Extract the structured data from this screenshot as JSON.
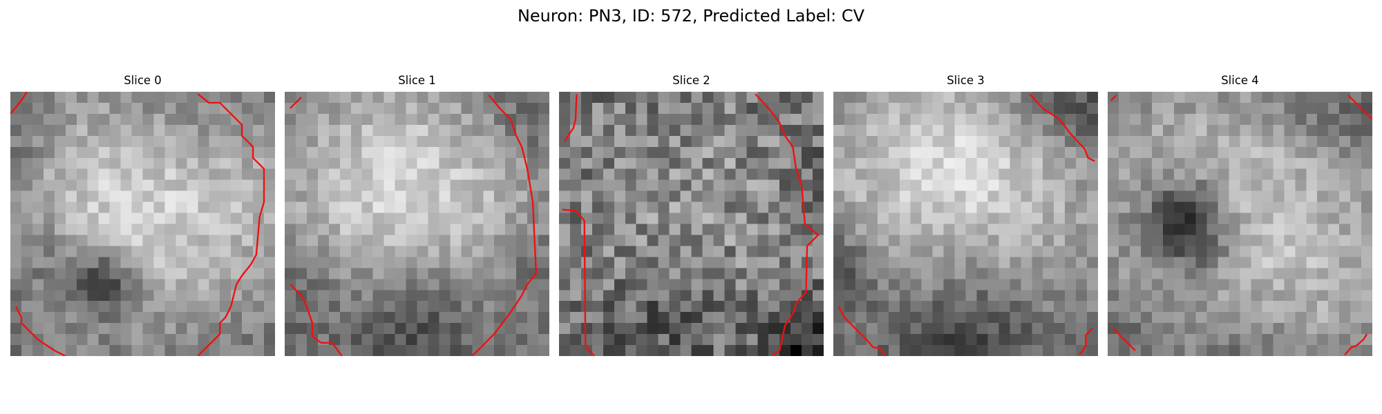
{
  "title": "Neuron: PN3, ID: 572, Predicted Label: CV",
  "slices": [
    {
      "title": "Slice 0",
      "seed": 11,
      "bright": [
        {
          "x": 13.0,
          "y": 8.5,
          "r": 10.0,
          "a": 0.92
        },
        {
          "x": 6.5,
          "y": 12.0,
          "r": 6.5,
          "a": 0.25
        },
        {
          "x": 21.0,
          "y": 11.5,
          "r": 5.2,
          "a": 0.18
        }
      ],
      "dark": [
        {
          "x": 8.6,
          "y": 17.3,
          "r": 2.0,
          "a": 0.65
        },
        {
          "x": 4.0,
          "y": 15.0,
          "r": 3.0,
          "a": 0.25
        },
        {
          "x": 15.0,
          "y": 1.0,
          "r": 5.0,
          "a": 0.25
        },
        {
          "x": 0.5,
          "y": 5.0,
          "r": 3.0,
          "a": 0.18
        }
      ],
      "contours": [
        [
          [
            0,
            2
          ],
          [
            1,
            0.8
          ],
          [
            1.5,
            0
          ]
        ],
        [
          [
            17,
            0.2
          ],
          [
            18,
            1
          ],
          [
            19,
            1
          ],
          [
            21,
            3
          ],
          [
            21,
            4
          ],
          [
            22,
            5
          ],
          [
            22,
            6
          ],
          [
            23,
            7
          ],
          [
            23,
            10
          ],
          [
            22.6,
            11.4
          ],
          [
            22.3,
            14.8
          ],
          [
            21.8,
            15.7
          ],
          [
            21.0,
            16.7
          ],
          [
            20.5,
            17.5
          ],
          [
            20.0,
            19.5
          ],
          [
            19.5,
            20.5
          ],
          [
            19,
            21
          ],
          [
            19,
            22
          ],
          [
            17,
            24
          ]
        ],
        [
          [
            0.5,
            19.5
          ],
          [
            1,
            20.5
          ],
          [
            1,
            21
          ],
          [
            2,
            22
          ],
          [
            2.5,
            22.5
          ],
          [
            4,
            23.5
          ],
          [
            5,
            24
          ]
        ]
      ]
    },
    {
      "title": "Slice 1",
      "seed": 23,
      "bright": [
        {
          "x": 12.0,
          "y": 10.0,
          "r": 10.3,
          "a": 0.95
        },
        {
          "x": 7.0,
          "y": 8.0,
          "r": 5.0,
          "a": 0.2
        },
        {
          "x": 18.0,
          "y": 14.0,
          "r": 6.0,
          "a": 0.1
        }
      ],
      "dark": [
        {
          "x": 12.0,
          "y": 21.0,
          "r": 5.0,
          "a": 0.48
        },
        {
          "x": 23.0,
          "y": 16.0,
          "r": 3.0,
          "a": 0.25
        },
        {
          "x": 0.5,
          "y": 18.0,
          "r": 3.0,
          "a": 0.18
        },
        {
          "x": 22.0,
          "y": 2.0,
          "r": 3.5,
          "a": 0.25
        }
      ],
      "contours": [
        [
          [
            0.5,
            1.5
          ],
          [
            1.5,
            0.5
          ]
        ],
        [
          [
            18.5,
            0.3
          ],
          [
            19.5,
            1.5
          ],
          [
            20.5,
            2.5
          ],
          [
            21,
            4
          ],
          [
            21.5,
            5
          ],
          [
            22,
            7
          ],
          [
            22.5,
            10
          ],
          [
            22.8,
            16.5
          ],
          [
            22,
            17.5
          ],
          [
            21.5,
            18.5
          ],
          [
            20.5,
            20
          ],
          [
            19,
            22
          ],
          [
            17,
            24
          ]
        ],
        [
          [
            0.5,
            17.5
          ],
          [
            1.5,
            18.5
          ],
          [
            2,
            19.5
          ],
          [
            2.5,
            21
          ],
          [
            2.5,
            22.2
          ],
          [
            3.3,
            22.8
          ],
          [
            4.3,
            22.8
          ],
          [
            5.2,
            24
          ]
        ]
      ]
    },
    {
      "title": "Slice 2",
      "seed": 37,
      "noise": 0.2,
      "bright": [
        {
          "x": 12.0,
          "y": 11.0,
          "r": 11.0,
          "a": 0.45
        }
      ],
      "dark": [
        {
          "x": 22.0,
          "y": 23.0,
          "r": 2.5,
          "a": 0.55
        },
        {
          "x": 10.0,
          "y": 20.5,
          "r": 4.0,
          "a": 0.25
        },
        {
          "x": 24.0,
          "y": 8.0,
          "r": 2.0,
          "a": 0.18
        }
      ],
      "contours": [
        [
          [
            0.5,
            4.5
          ],
          [
            1.3,
            3.3
          ],
          [
            1.5,
            2.5
          ],
          [
            1.6,
            0.2
          ]
        ],
        [
          [
            0.3,
            10.7
          ],
          [
            1.5,
            10.8
          ],
          [
            2.3,
            11.7
          ],
          [
            2.4,
            23.1
          ],
          [
            3.2,
            24
          ]
        ],
        [
          [
            17.8,
            0.2
          ],
          [
            19,
            1.5
          ],
          [
            20,
            2.8
          ],
          [
            20.5,
            4
          ],
          [
            21.2,
            5
          ],
          [
            21.5,
            7
          ],
          [
            22,
            8.5
          ],
          [
            22.3,
            12
          ],
          [
            23.5,
            13
          ],
          [
            22.5,
            14
          ],
          [
            22.4,
            18.2
          ],
          [
            21.5,
            19.2
          ],
          [
            21.3,
            20
          ],
          [
            20.5,
            21.2
          ],
          [
            20,
            23.5
          ],
          [
            19.3,
            24
          ]
        ]
      ]
    },
    {
      "title": "Slice 3",
      "seed": 53,
      "bright": [
        {
          "x": 12.0,
          "y": 10.0,
          "r": 11.0,
          "a": 0.95
        },
        {
          "x": 6.0,
          "y": 5.0,
          "r": 5.0,
          "a": 0.2
        },
        {
          "x": 14.0,
          "y": 5.0,
          "r": 4.5,
          "a": 0.15
        }
      ],
      "dark": [
        {
          "x": 12.0,
          "y": 22.5,
          "r": 5.5,
          "a": 0.55
        },
        {
          "x": 0.2,
          "y": 16.5,
          "r": 2.5,
          "a": 0.55
        },
        {
          "x": 20.0,
          "y": 0.8,
          "r": 3.0,
          "a": 0.35
        },
        {
          "x": 23.8,
          "y": 2.5,
          "r": 2.0,
          "a": 0.25
        }
      ],
      "contours": [
        [
          [
            17.8,
            0.2
          ],
          [
            19,
            1.5
          ],
          [
            20.5,
            2.5
          ],
          [
            21.5,
            3.8
          ],
          [
            22.8,
            5.2
          ],
          [
            23.1,
            6.0
          ],
          [
            23.7,
            6.3
          ]
        ],
        [
          [
            0.5,
            19.5
          ],
          [
            1,
            20.5
          ],
          [
            2,
            21.5
          ],
          [
            3,
            22.5
          ],
          [
            3.6,
            23.2
          ],
          [
            4.2,
            23.3
          ],
          [
            4.7,
            24
          ]
        ],
        [
          [
            23.5,
            21.5
          ],
          [
            22.9,
            22.1
          ],
          [
            22.9,
            23.1
          ],
          [
            22.3,
            23.9
          ]
        ]
      ]
    },
    {
      "title": "Slice 4",
      "seed": 71,
      "bright": [
        {
          "x": 13.0,
          "y": 12.0,
          "r": 11.0,
          "a": 0.92
        },
        {
          "x": 4.0,
          "y": 6.0,
          "r": 4.0,
          "a": 0.15
        },
        {
          "x": 20.0,
          "y": 20.0,
          "r": 4.0,
          "a": 0.1
        }
      ],
      "dark": [
        {
          "x": 7.0,
          "y": 11.5,
          "r": 2.7,
          "a": 0.85
        },
        {
          "x": 8.5,
          "y": 14.5,
          "r": 2.2,
          "a": 0.25
        },
        {
          "x": 18.0,
          "y": 0.5,
          "r": 3.0,
          "a": 0.25
        },
        {
          "x": 24.0,
          "y": 3.0,
          "r": 2.5,
          "a": 0.25
        },
        {
          "x": 12.0,
          "y": 23.0,
          "r": 3.5,
          "a": 0.25
        },
        {
          "x": 1.0,
          "y": 22.0,
          "r": 2.5,
          "a": 0.18
        }
      ],
      "contours": [
        [
          [
            0.3,
            0.8
          ],
          [
            0.8,
            0.3
          ]
        ],
        [
          [
            21.8,
            0.3
          ],
          [
            24,
            2.5
          ]
        ],
        [
          [
            0.5,
            21.5
          ],
          [
            2.5,
            23.5
          ]
        ],
        [
          [
            21.5,
            23.9
          ],
          [
            22.1,
            23.2
          ],
          [
            22.5,
            23.1
          ],
          [
            23.2,
            22.5
          ],
          [
            23.5,
            22.0
          ]
        ]
      ]
    }
  ],
  "colors": {
    "contour": "#ee1111",
    "grid_min": 0,
    "grid_max": 255
  }
}
